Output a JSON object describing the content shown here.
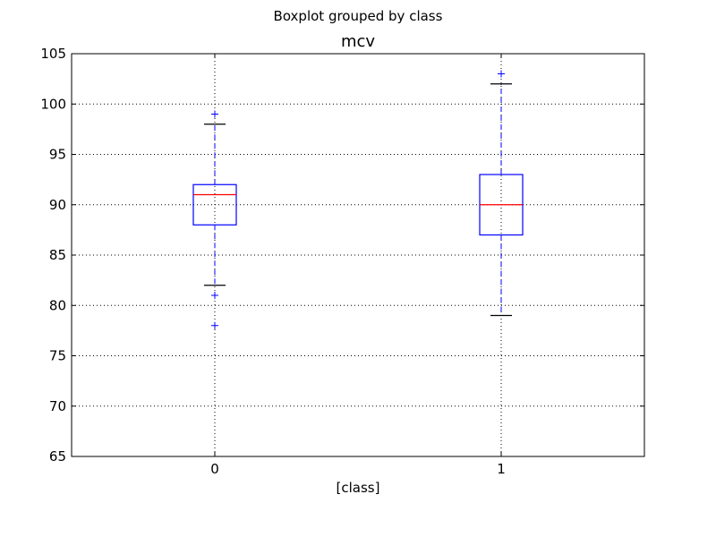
{
  "chart_data": {
    "type": "box",
    "suptitle": "Boxplot grouped by class",
    "title": "mcv",
    "xlabel": "[class]",
    "ylabel": "",
    "ylim": [
      65,
      105
    ],
    "y_ticks": [
      65,
      70,
      75,
      80,
      85,
      90,
      95,
      100,
      105
    ],
    "categories": [
      "0",
      "1"
    ],
    "grid": true,
    "boxes": [
      {
        "category": "0",
        "whisker_low": 82,
        "q1": 88,
        "median": 91,
        "q3": 92,
        "whisker_high": 98,
        "outliers": [
          99,
          81,
          78
        ]
      },
      {
        "category": "1",
        "whisker_low": 79,
        "q1": 87,
        "median": 90,
        "q3": 93,
        "whisker_high": 102,
        "outliers": [
          103
        ]
      }
    ],
    "colors": {
      "box": "#0000ff",
      "whisker": "#0000ff",
      "median": "#ff0000",
      "cap": "#000000",
      "flier": "#0000ff",
      "grid": "#000000",
      "frame": "#000000"
    }
  }
}
